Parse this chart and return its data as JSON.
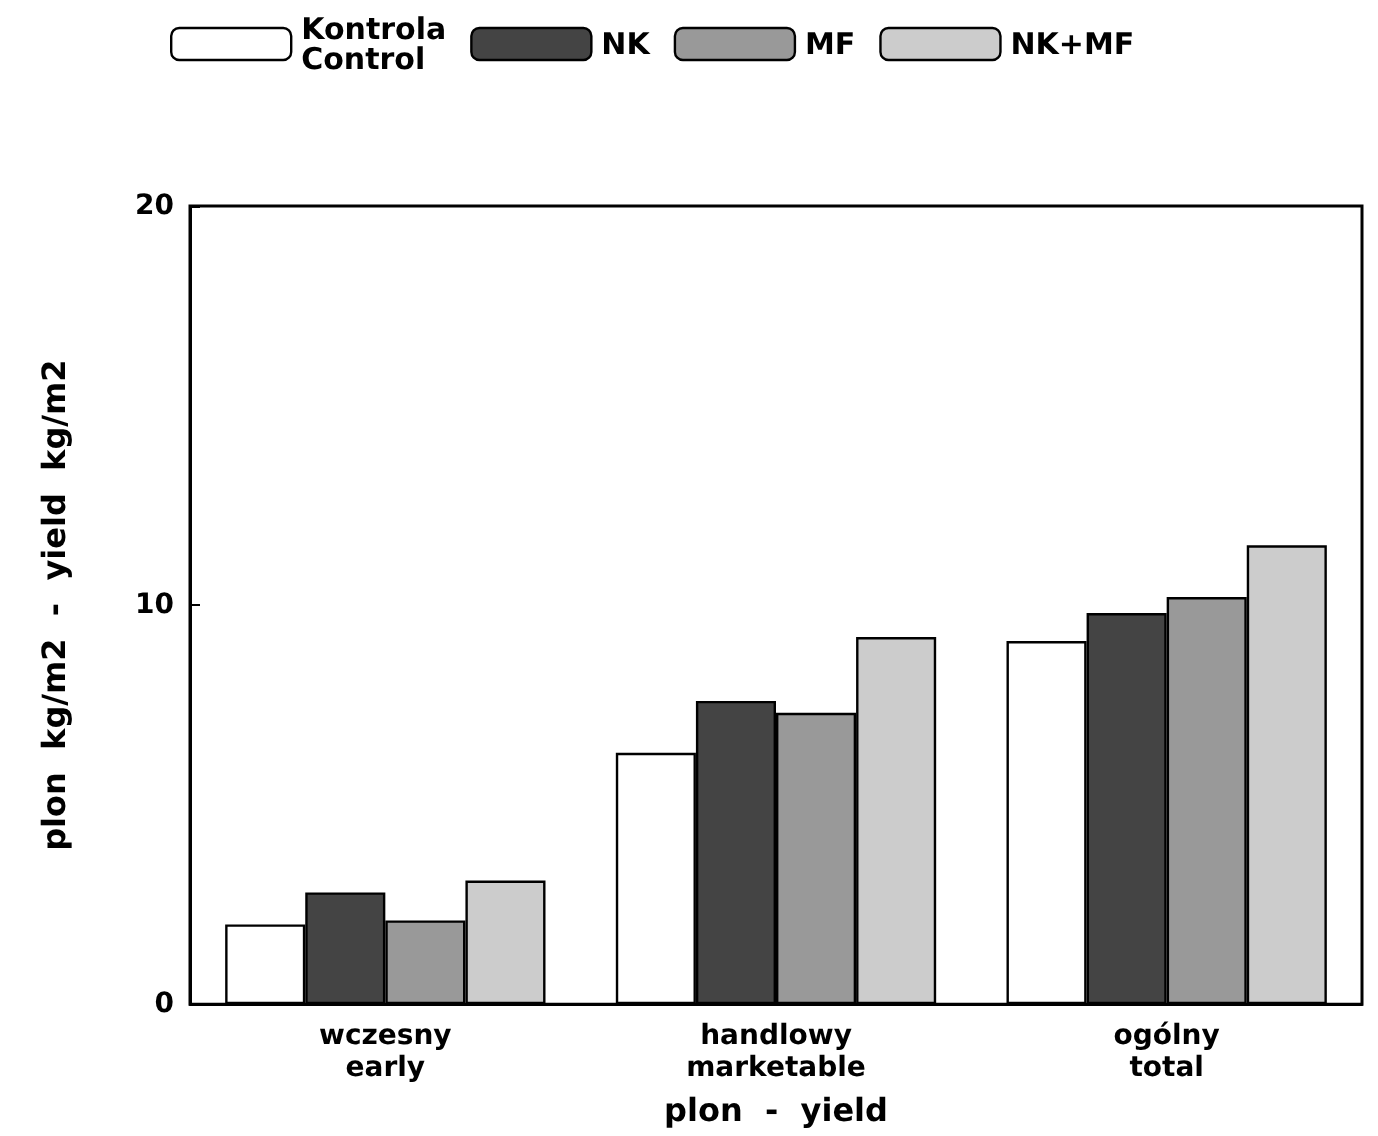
{
  "chart_data": {
    "type": "bar",
    "xlabel": "plon  -  yield",
    "ylabel": "plon  kg/m2  -  yield  kg/m2",
    "categories": [
      "wczesny\nearly",
      "handlowy\nmarketable",
      "ogólny\ntotal"
    ],
    "series": [
      {
        "name": "Kontrola\nControl",
        "color": "#ffffff",
        "values": [
          2.0,
          6.3,
          9.1
        ]
      },
      {
        "name": "NK",
        "color": "#444444",
        "values": [
          2.8,
          7.6,
          9.8
        ]
      },
      {
        "name": "MF",
        "color": "#999999",
        "values": [
          2.1,
          7.3,
          10.2
        ]
      },
      {
        "name": "NK+MF",
        "color": "#cccccc",
        "values": [
          3.1,
          9.2,
          11.5
        ]
      }
    ],
    "ylim": [
      0,
      20
    ],
    "yticks": [
      0,
      10,
      20
    ],
    "grid": false,
    "legend": "top"
  }
}
